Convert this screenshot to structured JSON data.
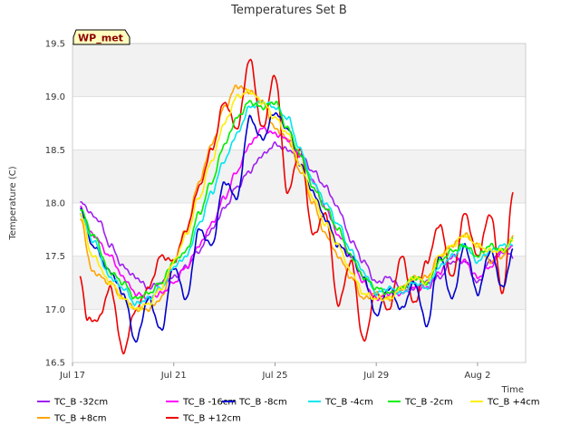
{
  "chart_data": {
    "type": "line",
    "title": "Temperatures Set B",
    "xlabel": "Time",
    "ylabel": "Temperature (C)",
    "badge": "WP_met",
    "xlim": [
      0,
      17.9
    ],
    "ylim": [
      16.5,
      19.5
    ],
    "x_ticks": [
      {
        "label": "Jul 17",
        "value": 0
      },
      {
        "label": "Jul 21",
        "value": 4
      },
      {
        "label": "Jul 25",
        "value": 8
      },
      {
        "label": "Jul 29",
        "value": 12
      },
      {
        "label": "Aug 2",
        "value": 16
      }
    ],
    "y_ticks": [
      "16.5",
      "17.0",
      "17.5",
      "18.0",
      "18.5",
      "19.0",
      "19.5"
    ],
    "grid_bands": true,
    "legend_position": "bottom",
    "series": [
      {
        "name": "TC_B -32cm",
        "color": "#a020f0",
        "points": [
          [
            0.3,
            18.0
          ],
          [
            1.0,
            17.85
          ],
          [
            1.5,
            17.6
          ],
          [
            2.0,
            17.4
          ],
          [
            2.5,
            17.3
          ],
          [
            3.0,
            17.2
          ],
          [
            3.5,
            17.25
          ],
          [
            4.0,
            17.3
          ],
          [
            4.5,
            17.4
          ],
          [
            5.0,
            17.55
          ],
          [
            5.5,
            17.75
          ],
          [
            6.0,
            17.95
          ],
          [
            6.5,
            18.15
          ],
          [
            7.0,
            18.3
          ],
          [
            7.5,
            18.45
          ],
          [
            8.0,
            18.55
          ],
          [
            8.5,
            18.5
          ],
          [
            9.0,
            18.45
          ],
          [
            9.5,
            18.3
          ],
          [
            10.0,
            18.15
          ],
          [
            10.5,
            17.95
          ],
          [
            11.0,
            17.65
          ],
          [
            11.5,
            17.45
          ],
          [
            12.0,
            17.25
          ],
          [
            12.5,
            17.3
          ],
          [
            13.0,
            17.2
          ],
          [
            13.5,
            17.2
          ],
          [
            14.0,
            17.25
          ],
          [
            14.5,
            17.3
          ],
          [
            15.0,
            17.45
          ],
          [
            15.5,
            17.45
          ],
          [
            16.0,
            17.25
          ],
          [
            16.5,
            17.45
          ],
          [
            17.0,
            17.55
          ],
          [
            17.4,
            17.5
          ]
        ]
      },
      {
        "name": "TC_B +8cm",
        "color": "#ffa500",
        "points": [
          [
            0.3,
            17.85
          ],
          [
            0.8,
            17.35
          ],
          [
            1.5,
            17.25
          ],
          [
            2.0,
            17.1
          ],
          [
            2.5,
            17.0
          ],
          [
            3.0,
            17.0
          ],
          [
            3.5,
            17.1
          ],
          [
            4.0,
            17.45
          ],
          [
            4.5,
            17.75
          ],
          [
            5.0,
            18.2
          ],
          [
            5.5,
            18.55
          ],
          [
            6.0,
            18.9
          ],
          [
            6.5,
            19.1
          ],
          [
            7.0,
            19.05
          ],
          [
            7.5,
            18.95
          ],
          [
            8.0,
            18.7
          ],
          [
            8.5,
            18.6
          ],
          [
            9.0,
            18.3
          ],
          [
            9.5,
            18.0
          ],
          [
            10.0,
            17.7
          ],
          [
            10.5,
            17.5
          ],
          [
            11.0,
            17.3
          ],
          [
            11.5,
            17.1
          ],
          [
            12.0,
            17.15
          ],
          [
            12.5,
            17.1
          ],
          [
            13.0,
            17.2
          ],
          [
            13.5,
            17.3
          ],
          [
            14.0,
            17.3
          ],
          [
            14.5,
            17.5
          ],
          [
            15.0,
            17.6
          ],
          [
            15.5,
            17.7
          ],
          [
            16.0,
            17.6
          ],
          [
            16.5,
            17.45
          ],
          [
            17.0,
            17.5
          ],
          [
            17.4,
            17.7
          ]
        ]
      },
      {
        "name": "TC_B -16cm",
        "color": "#ff00ff",
        "points": [
          [
            0.3,
            17.95
          ],
          [
            0.8,
            17.7
          ],
          [
            1.5,
            17.5
          ],
          [
            2.0,
            17.3
          ],
          [
            2.5,
            17.15
          ],
          [
            3.0,
            17.1
          ],
          [
            3.5,
            17.15
          ],
          [
            4.0,
            17.25
          ],
          [
            4.5,
            17.4
          ],
          [
            5.0,
            17.6
          ],
          [
            5.5,
            17.8
          ],
          [
            6.0,
            18.05
          ],
          [
            6.5,
            18.3
          ],
          [
            7.0,
            18.55
          ],
          [
            7.5,
            18.7
          ],
          [
            8.0,
            18.65
          ],
          [
            8.5,
            18.6
          ],
          [
            9.0,
            18.45
          ],
          [
            9.5,
            18.2
          ],
          [
            10.0,
            17.95
          ],
          [
            10.5,
            17.7
          ],
          [
            11.0,
            17.5
          ],
          [
            11.5,
            17.25
          ],
          [
            12.0,
            17.1
          ],
          [
            12.5,
            17.15
          ],
          [
            13.0,
            17.15
          ],
          [
            13.5,
            17.2
          ],
          [
            14.0,
            17.2
          ],
          [
            14.5,
            17.35
          ],
          [
            15.0,
            17.5
          ],
          [
            15.5,
            17.45
          ],
          [
            16.0,
            17.3
          ],
          [
            16.5,
            17.4
          ],
          [
            17.0,
            17.55
          ],
          [
            17.4,
            17.6
          ]
        ]
      },
      {
        "name": "TC_B +12cm",
        "color": "#ee0000",
        "points": [
          [
            0.3,
            17.3
          ],
          [
            0.6,
            16.9
          ],
          [
            1.0,
            16.9
          ],
          [
            1.5,
            17.2
          ],
          [
            2.0,
            16.6
          ],
          [
            2.5,
            17.0
          ],
          [
            3.0,
            17.2
          ],
          [
            3.5,
            17.5
          ],
          [
            4.0,
            17.45
          ],
          [
            4.5,
            17.75
          ],
          [
            5.0,
            18.15
          ],
          [
            5.5,
            18.5
          ],
          [
            6.0,
            18.95
          ],
          [
            6.5,
            18.7
          ],
          [
            7.0,
            19.35
          ],
          [
            7.5,
            18.7
          ],
          [
            8.0,
            19.2
          ],
          [
            8.5,
            18.1
          ],
          [
            9.0,
            18.5
          ],
          [
            9.5,
            17.7
          ],
          [
            10.0,
            17.9
          ],
          [
            10.5,
            17.05
          ],
          [
            11.0,
            17.45
          ],
          [
            11.5,
            16.7
          ],
          [
            12.0,
            17.15
          ],
          [
            12.5,
            17.0
          ],
          [
            13.0,
            17.5
          ],
          [
            13.5,
            17.05
          ],
          [
            14.0,
            17.45
          ],
          [
            14.5,
            17.8
          ],
          [
            15.0,
            17.3
          ],
          [
            15.5,
            17.9
          ],
          [
            16.0,
            17.5
          ],
          [
            16.5,
            17.9
          ],
          [
            17.0,
            17.15
          ],
          [
            17.4,
            18.1
          ]
        ]
      },
      {
        "name": "TC_B -8cm",
        "color": "#0000cd",
        "points": [
          [
            0.3,
            17.95
          ],
          [
            0.8,
            17.6
          ],
          [
            1.5,
            17.35
          ],
          [
            2.0,
            17.15
          ],
          [
            2.5,
            16.7
          ],
          [
            3.0,
            17.1
          ],
          [
            3.5,
            16.8
          ],
          [
            4.0,
            17.4
          ],
          [
            4.5,
            17.1
          ],
          [
            5.0,
            17.75
          ],
          [
            5.5,
            17.6
          ],
          [
            6.0,
            18.2
          ],
          [
            6.5,
            18.05
          ],
          [
            7.0,
            18.8
          ],
          [
            7.5,
            18.6
          ],
          [
            8.0,
            18.85
          ],
          [
            8.5,
            18.7
          ],
          [
            9.0,
            18.35
          ],
          [
            9.5,
            18.1
          ],
          [
            10.0,
            17.85
          ],
          [
            10.5,
            17.6
          ],
          [
            11.0,
            17.5
          ],
          [
            11.5,
            17.3
          ],
          [
            12.0,
            16.95
          ],
          [
            12.5,
            17.2
          ],
          [
            13.0,
            17.0
          ],
          [
            13.5,
            17.25
          ],
          [
            14.0,
            16.85
          ],
          [
            14.5,
            17.5
          ],
          [
            15.0,
            17.1
          ],
          [
            15.5,
            17.6
          ],
          [
            16.0,
            17.15
          ],
          [
            16.5,
            17.55
          ],
          [
            17.0,
            17.2
          ],
          [
            17.4,
            17.55
          ]
        ]
      },
      {
        "name": "TC_B -4cm",
        "color": "#00e5ee",
        "points": [
          [
            0.3,
            17.9
          ],
          [
            0.8,
            17.65
          ],
          [
            1.5,
            17.3
          ],
          [
            2.0,
            17.2
          ],
          [
            2.5,
            17.05
          ],
          [
            3.0,
            17.1
          ],
          [
            3.5,
            17.2
          ],
          [
            4.0,
            17.4
          ],
          [
            4.5,
            17.5
          ],
          [
            5.0,
            17.8
          ],
          [
            5.5,
            18.1
          ],
          [
            6.0,
            18.4
          ],
          [
            6.5,
            18.65
          ],
          [
            7.0,
            18.9
          ],
          [
            7.5,
            18.95
          ],
          [
            8.0,
            18.9
          ],
          [
            8.5,
            18.8
          ],
          [
            9.0,
            18.5
          ],
          [
            9.5,
            18.2
          ],
          [
            10.0,
            18.0
          ],
          [
            10.5,
            17.8
          ],
          [
            11.0,
            17.55
          ],
          [
            11.5,
            17.35
          ],
          [
            12.0,
            17.15
          ],
          [
            12.5,
            17.2
          ],
          [
            13.0,
            17.15
          ],
          [
            13.5,
            17.25
          ],
          [
            14.0,
            17.2
          ],
          [
            14.5,
            17.4
          ],
          [
            15.0,
            17.5
          ],
          [
            15.5,
            17.6
          ],
          [
            16.0,
            17.45
          ],
          [
            16.5,
            17.55
          ],
          [
            17.0,
            17.6
          ],
          [
            17.4,
            17.6
          ]
        ]
      },
      {
        "name": "TC_B -2cm",
        "color": "#00ee00",
        "points": [
          [
            0.3,
            17.95
          ],
          [
            0.8,
            17.7
          ],
          [
            1.5,
            17.35
          ],
          [
            2.0,
            17.25
          ],
          [
            2.5,
            17.1
          ],
          [
            3.0,
            17.15
          ],
          [
            3.5,
            17.25
          ],
          [
            4.0,
            17.45
          ],
          [
            4.5,
            17.55
          ],
          [
            5.0,
            17.9
          ],
          [
            5.5,
            18.2
          ],
          [
            6.0,
            18.55
          ],
          [
            6.5,
            18.8
          ],
          [
            7.0,
            18.95
          ],
          [
            7.5,
            18.9
          ],
          [
            8.0,
            18.95
          ],
          [
            8.5,
            18.7
          ],
          [
            9.0,
            18.45
          ],
          [
            9.5,
            18.15
          ],
          [
            10.0,
            17.95
          ],
          [
            10.5,
            17.75
          ],
          [
            11.0,
            17.5
          ],
          [
            11.5,
            17.3
          ],
          [
            12.0,
            17.2
          ],
          [
            12.5,
            17.15
          ],
          [
            13.0,
            17.2
          ],
          [
            13.5,
            17.3
          ],
          [
            14.0,
            17.25
          ],
          [
            14.5,
            17.45
          ],
          [
            15.0,
            17.55
          ],
          [
            15.5,
            17.6
          ],
          [
            16.0,
            17.5
          ],
          [
            16.5,
            17.6
          ],
          [
            17.0,
            17.55
          ],
          [
            17.4,
            17.65
          ]
        ]
      },
      {
        "name": "TC_B +4cm",
        "color": "#ffee00",
        "points": [
          [
            0.3,
            17.9
          ],
          [
            0.8,
            17.5
          ],
          [
            1.5,
            17.25
          ],
          [
            2.0,
            17.1
          ],
          [
            2.5,
            17.0
          ],
          [
            3.0,
            17.05
          ],
          [
            3.5,
            17.2
          ],
          [
            4.0,
            17.45
          ],
          [
            4.5,
            17.7
          ],
          [
            5.0,
            18.05
          ],
          [
            5.5,
            18.4
          ],
          [
            6.0,
            18.75
          ],
          [
            6.5,
            19.0
          ],
          [
            7.0,
            19.05
          ],
          [
            7.5,
            18.95
          ],
          [
            8.0,
            18.8
          ],
          [
            8.5,
            18.65
          ],
          [
            9.0,
            18.35
          ],
          [
            9.5,
            18.05
          ],
          [
            10.0,
            17.8
          ],
          [
            10.5,
            17.6
          ],
          [
            11.0,
            17.35
          ],
          [
            11.5,
            17.15
          ],
          [
            12.0,
            17.1
          ],
          [
            12.5,
            17.1
          ],
          [
            13.0,
            17.2
          ],
          [
            13.5,
            17.3
          ],
          [
            14.0,
            17.25
          ],
          [
            14.5,
            17.5
          ],
          [
            15.0,
            17.6
          ],
          [
            15.5,
            17.7
          ],
          [
            16.0,
            17.6
          ],
          [
            16.5,
            17.55
          ],
          [
            17.0,
            17.55
          ],
          [
            17.4,
            17.65
          ]
        ]
      }
    ]
  }
}
